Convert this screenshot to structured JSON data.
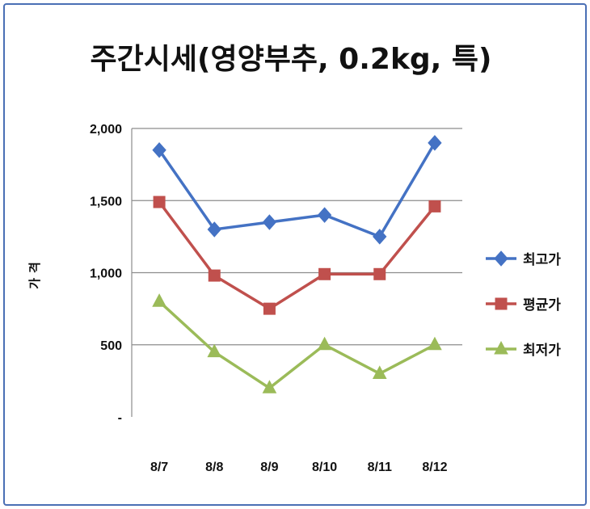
{
  "chart_data": {
    "type": "line",
    "title": "주간시세(영양부추, 0.2kg, 특)",
    "xlabel": "",
    "ylabel": "가격",
    "categories": [
      "8/7",
      "8/8",
      "8/9",
      "8/10",
      "8/11",
      "8/12"
    ],
    "y_ticks": [
      "-",
      "500",
      "1,000",
      "1,500",
      "2,000"
    ],
    "ylim": [
      0,
      2000
    ],
    "grid": true,
    "legend_position": "right",
    "series": [
      {
        "name": "최고가",
        "values": [
          1850,
          1300,
          1350,
          1400,
          1250,
          1900
        ],
        "color": "#4472c4",
        "marker": "diamond"
      },
      {
        "name": "평균가",
        "values": [
          1490,
          980,
          750,
          990,
          990,
          1460
        ],
        "color": "#c0504d",
        "marker": "square"
      },
      {
        "name": "최저가",
        "values": [
          800,
          450,
          200,
          500,
          300,
          500
        ],
        "color": "#9bbb59",
        "marker": "triangle"
      }
    ]
  }
}
